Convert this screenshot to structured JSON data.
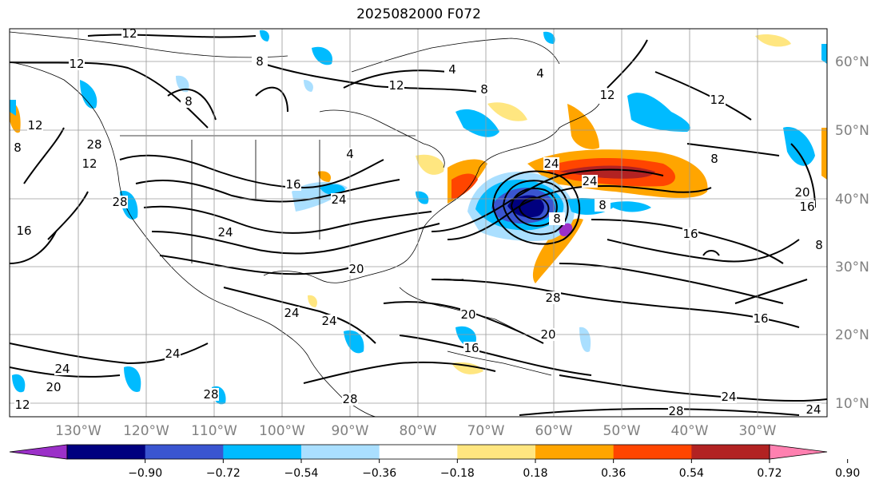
{
  "title": "2025082000 F072",
  "lon_labels": [
    "130°W",
    "120°W",
    "110°W",
    "100°W",
    "90°W",
    "80°W",
    "70°W",
    "60°W",
    "50°W",
    "40°W",
    "30°W"
  ],
  "lat_labels": [
    "60°N",
    "50°N",
    "40°N",
    "30°N",
    "20°N",
    "10°N"
  ],
  "colorbar": {
    "colors": [
      "#9b30c8",
      "#00007f",
      "#3a55d0",
      "#00bbff",
      "#aadfff",
      "#ffffff",
      "#ffe680",
      "#ffa500",
      "#ff4500",
      "#b22222",
      "#ff80b0"
    ],
    "tick_labels": [
      "−0.90",
      "−0.72",
      "−0.54",
      "−0.36",
      "−0.18",
      "0.18",
      "0.36",
      "0.54",
      "0.72",
      "0.90"
    ]
  },
  "contour_labels": [
    "12",
    "12",
    "4",
    "8",
    "12",
    "8",
    "4",
    "12",
    "8",
    "12",
    "8",
    "12",
    "8",
    "4",
    "16",
    "24",
    "12",
    "24",
    "24",
    "8",
    "8",
    "20",
    "16",
    "20",
    "16",
    "16",
    "8",
    "24",
    "20",
    "16",
    "16",
    "20",
    "28",
    "24",
    "24",
    "20",
    "28",
    "28",
    "24",
    "24",
    "28",
    "12",
    "28",
    "24",
    "28",
    "24"
  ]
}
